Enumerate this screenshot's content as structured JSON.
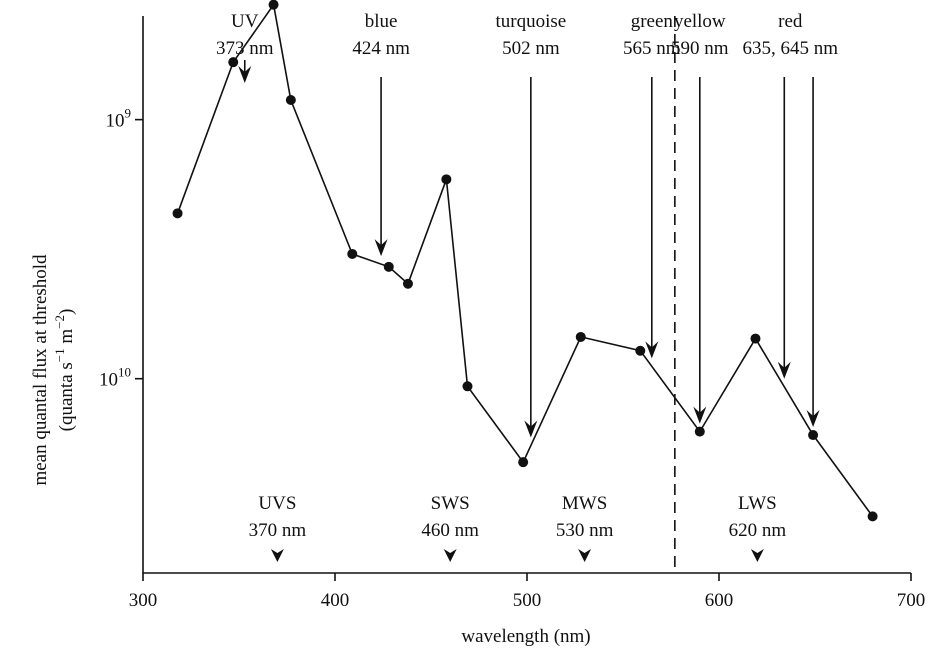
{
  "chart_data": {
    "type": "line",
    "xlabel": "wavelength (nm)",
    "ylabel_line1": "mean quantal flux at threshold",
    "ylabel_line2": {
      "prefix": "(quanta s",
      "sup1": "−1",
      "middle": " m",
      "sup2": "−2",
      "suffix": ")"
    },
    "xlim": [
      300,
      700
    ],
    "ylim_exponent_top": 8.6,
    "ylim_exponent_bottom": 10.75,
    "y_axis_inverted": true,
    "y_scale": "log",
    "x_ticks": [
      {
        "value": 300,
        "label": "300"
      },
      {
        "value": 400,
        "label": "400"
      },
      {
        "value": 500,
        "label": "500"
      },
      {
        "value": 600,
        "label": "600"
      },
      {
        "value": 700,
        "label": "700"
      }
    ],
    "y_ticks": [
      {
        "exponent": 9,
        "base": "10",
        "power": "9"
      },
      {
        "exponent": 10,
        "base": "10",
        "power": "10"
      }
    ],
    "points": [
      {
        "x": 318,
        "y": 2300000000.0
      },
      {
        "x": 347,
        "y": 600000000.0
      },
      {
        "x": 368,
        "y": 360000000.0
      },
      {
        "x": 377,
        "y": 840000000.0
      },
      {
        "x": 409,
        "y": 3300000000.0
      },
      {
        "x": 428,
        "y": 3700000000.0
      },
      {
        "x": 438,
        "y": 4300000000.0
      },
      {
        "x": 458,
        "y": 1700000000.0
      },
      {
        "x": 469,
        "y": 10700000000.0
      },
      {
        "x": 498,
        "y": 21000000000.0
      },
      {
        "x": 528,
        "y": 6900000000.0
      },
      {
        "x": 559,
        "y": 7800000000.0
      },
      {
        "x": 590,
        "y": 16000000000.0
      },
      {
        "x": 619,
        "y": 7000000000.0
      },
      {
        "x": 649,
        "y": 16500000000.0
      },
      {
        "x": 680,
        "y": 34000000000.0
      }
    ],
    "stimulus_arrows": [
      {
        "name": "UV",
        "label": "373 nm",
        "x": 353,
        "style": "short"
      },
      {
        "name": "blue",
        "label": "424 nm",
        "x": 424,
        "style": "long"
      },
      {
        "name": "turquoise",
        "label": "502 nm",
        "x": 502,
        "style": "long"
      },
      {
        "name": "green",
        "label": "565 nm",
        "x": 565,
        "style": "long"
      },
      {
        "name": "yellow",
        "label": "590 nm",
        "x": 590,
        "style": "long"
      },
      {
        "name": "red",
        "label": "635, 645 nm",
        "x": 634,
        "style": "long"
      },
      {
        "name": "",
        "label": "",
        "x": 649,
        "style": "long"
      }
    ],
    "receptor_markers": [
      {
        "name": "UVS",
        "label": "370 nm",
        "x": 370
      },
      {
        "name": "SWS",
        "label": "460 nm",
        "x": 460
      },
      {
        "name": "MWS",
        "label": "530 nm",
        "x": 530
      },
      {
        "name": "LWS",
        "label": "620 nm",
        "x": 620
      }
    ],
    "divider_x": 577,
    "grid": false,
    "legend": "none"
  }
}
